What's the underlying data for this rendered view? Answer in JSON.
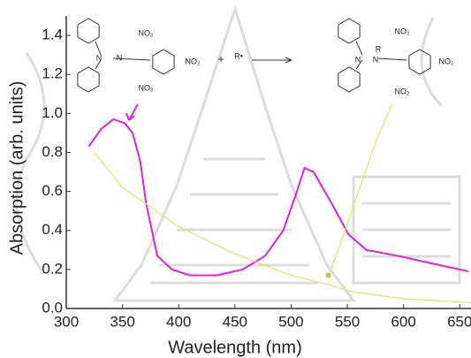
{
  "chart_data": {
    "type": "line",
    "x_label": "Wavelength (nm)",
    "y_label": "Absorption (arb. units)",
    "xlim": [
      300,
      660
    ],
    "ylim": [
      0,
      1.5
    ],
    "xticks": [
      300,
      350,
      400,
      450,
      500,
      550,
      600,
      650
    ],
    "yticks": [
      {
        "value": 0,
        "label": "0.0"
      },
      0.2,
      0.4,
      0.6,
      0.8,
      {
        "value": 1,
        "label": "1.0"
      },
      1.2,
      1.4
    ],
    "series": [
      {
        "color": "#e020e0",
        "x": [
          320,
          331,
          342,
          352,
          359,
          366,
          371,
          381,
          394,
          410,
          434,
          457,
          477,
          493,
          504,
          512,
          520,
          536,
          551,
          567,
          595,
          626,
          658
        ],
        "values": [
          0.83,
          0.92,
          0.97,
          0.95,
          0.9,
          0.75,
          0.54,
          0.27,
          0.2,
          0.17,
          0.17,
          0.2,
          0.27,
          0.4,
          0.58,
          0.72,
          0.7,
          0.54,
          0.38,
          0.3,
          0.27,
          0.23,
          0.19
        ]
      },
      {
        "color": "#e8e060",
        "x": [
          325,
          350,
          400,
          450,
          500,
          535,
          550,
          600,
          660
        ],
        "values": [
          0.8,
          0.62,
          0.42,
          0.28,
          0.17,
          0.12,
          0.09,
          0.05,
          0.03
        ]
      },
      {
        "color": "#e8e060",
        "x": [
          533,
          545,
          560,
          575,
          590
        ],
        "values": [
          0.16,
          0.35,
          0.6,
          0.85,
          1.05
        ]
      }
    ],
    "annotations": [
      "N",
      "N",
      "NO₂",
      "NO₂",
      "NO₂",
      "+",
      "R•",
      "N",
      "N",
      "R",
      "NO₂",
      "NO₂",
      "NO₂"
    ]
  }
}
